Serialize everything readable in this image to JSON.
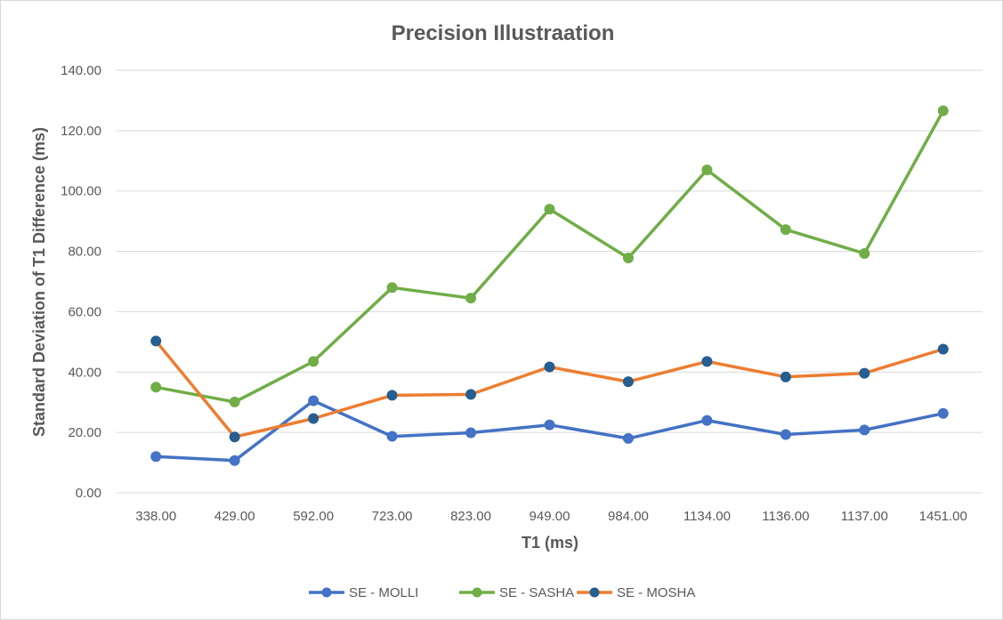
{
  "chart_data": {
    "type": "line",
    "title": "Precision Illustraation",
    "xlabel": "T1 (ms)",
    "ylabel": "Standard Deviation of T1 Difference (ms)",
    "categories": [
      "338.00",
      "429.00",
      "592.00",
      "723.00",
      "823.00",
      "949.00",
      "984.00",
      "1134.00",
      "1136.00",
      "1137.00",
      "1451.00"
    ],
    "ylim": [
      0,
      140
    ],
    "yticks": [
      "0.00",
      "20.00",
      "40.00",
      "60.00",
      "80.00",
      "100.00",
      "120.00",
      "140.00"
    ],
    "grid": true,
    "legend_position": "bottom",
    "series": [
      {
        "name": "SE - MOLLI",
        "color": "#4472c4",
        "marker_color": "#4472c4",
        "values": [
          12.0,
          10.7,
          30.5,
          18.7,
          19.9,
          22.5,
          18.0,
          24.0,
          19.3,
          20.8,
          26.3
        ]
      },
      {
        "name": "SE - SASHA",
        "color": "#70ad47",
        "marker_color": "#70ad47",
        "values": [
          35.0,
          30.1,
          43.5,
          68.0,
          64.5,
          94.0,
          77.8,
          107.0,
          87.2,
          79.3,
          126.6
        ]
      },
      {
        "name": "SE - MOSHA",
        "color": "#ed7d31",
        "marker_color": "#255e91",
        "values": [
          50.3,
          18.5,
          24.6,
          32.3,
          32.6,
          41.7,
          36.8,
          43.5,
          38.4,
          39.6,
          47.6
        ]
      }
    ]
  }
}
